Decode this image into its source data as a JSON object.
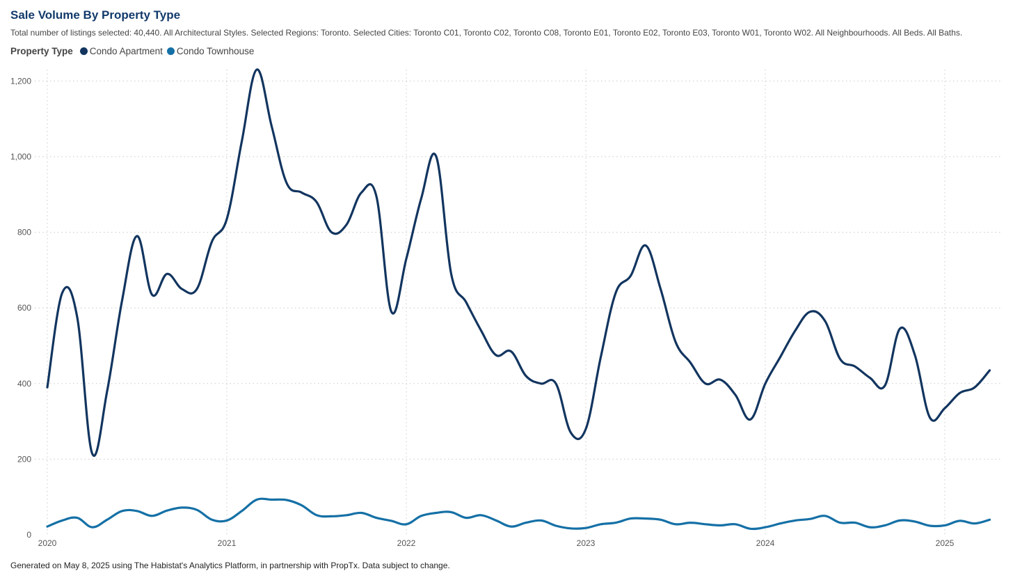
{
  "header": {
    "title": "Sale Volume By Property Type",
    "subtitle": "Total number of listings selected: 40,440. All Architectural Styles. Selected Regions: Toronto. Selected Cities: Toronto C01, Toronto C02, Toronto C08, Toronto E01, Toronto E02, Toronto E03, Toronto W01, Toronto W02. All Neighbourhoods. All Beds. All Baths."
  },
  "legend": {
    "title": "Property Type"
  },
  "footer": {
    "text": "Generated on May 8, 2025 using The Habistat's Analytics Platform, in partnership with PropTx. Data subject to change."
  },
  "colors": {
    "condo_apartment": "#12355f",
    "condo_townhouse": "#1570a6",
    "grid": "#c9c9c9"
  },
  "chart_data": {
    "type": "line",
    "title": "Sale Volume By Property Type",
    "xlabel": "",
    "ylabel": "",
    "ylim": [
      0,
      1230
    ],
    "yticks": [
      0,
      200,
      400,
      600,
      800,
      1000,
      1200
    ],
    "ytick_labels": [
      "0",
      "200",
      "400",
      "600",
      "800",
      "1,000",
      "1,200"
    ],
    "xticks": [
      "2020",
      "2021",
      "2022",
      "2023",
      "2024",
      "2025"
    ],
    "grid": true,
    "legend_position": "top-left",
    "x": [
      "2020-01",
      "2020-02",
      "2020-03",
      "2020-04",
      "2020-05",
      "2020-06",
      "2020-07",
      "2020-08",
      "2020-09",
      "2020-10",
      "2020-11",
      "2020-12",
      "2021-01",
      "2021-02",
      "2021-03",
      "2021-04",
      "2021-05",
      "2021-06",
      "2021-07",
      "2021-08",
      "2021-09",
      "2021-10",
      "2021-11",
      "2021-12",
      "2022-01",
      "2022-02",
      "2022-03",
      "2022-04",
      "2022-05",
      "2022-06",
      "2022-07",
      "2022-08",
      "2022-09",
      "2022-10",
      "2022-11",
      "2022-12",
      "2023-01",
      "2023-02",
      "2023-03",
      "2023-04",
      "2023-05",
      "2023-06",
      "2023-07",
      "2023-08",
      "2023-09",
      "2023-10",
      "2023-11",
      "2023-12",
      "2024-01",
      "2024-02",
      "2024-03",
      "2024-04",
      "2024-05",
      "2024-06",
      "2024-07",
      "2024-08",
      "2024-09",
      "2024-10",
      "2024-11",
      "2024-12",
      "2025-01",
      "2025-02",
      "2025-03",
      "2025-04"
    ],
    "series": [
      {
        "name": "Condo Apartment",
        "values": [
          390,
          640,
          575,
          215,
          380,
          620,
          790,
          635,
          690,
          650,
          650,
          775,
          835,
          1040,
          1230,
          1080,
          930,
          905,
          880,
          800,
          820,
          905,
          895,
          590,
          730,
          890,
          1000,
          690,
          615,
          540,
          475,
          485,
          420,
          400,
          400,
          270,
          280,
          470,
          640,
          685,
          765,
          650,
          510,
          455,
          400,
          410,
          370,
          305,
          400,
          470,
          540,
          590,
          565,
          465,
          445,
          415,
          395,
          545,
          475,
          310,
          335,
          375,
          390,
          435
        ]
      },
      {
        "name": "Condo Townhouse",
        "values": [
          22,
          38,
          45,
          20,
          40,
          63,
          63,
          50,
          64,
          72,
          66,
          40,
          38,
          63,
          93,
          93,
          92,
          78,
          52,
          49,
          52,
          58,
          45,
          37,
          28,
          50,
          58,
          60,
          45,
          52,
          38,
          22,
          32,
          38,
          24,
          17,
          18,
          28,
          32,
          43,
          43,
          40,
          28,
          32,
          28,
          25,
          28,
          16,
          20,
          30,
          38,
          42,
          50,
          32,
          32,
          20,
          25,
          38,
          35,
          24,
          25,
          37,
          30,
          40
        ]
      }
    ]
  }
}
